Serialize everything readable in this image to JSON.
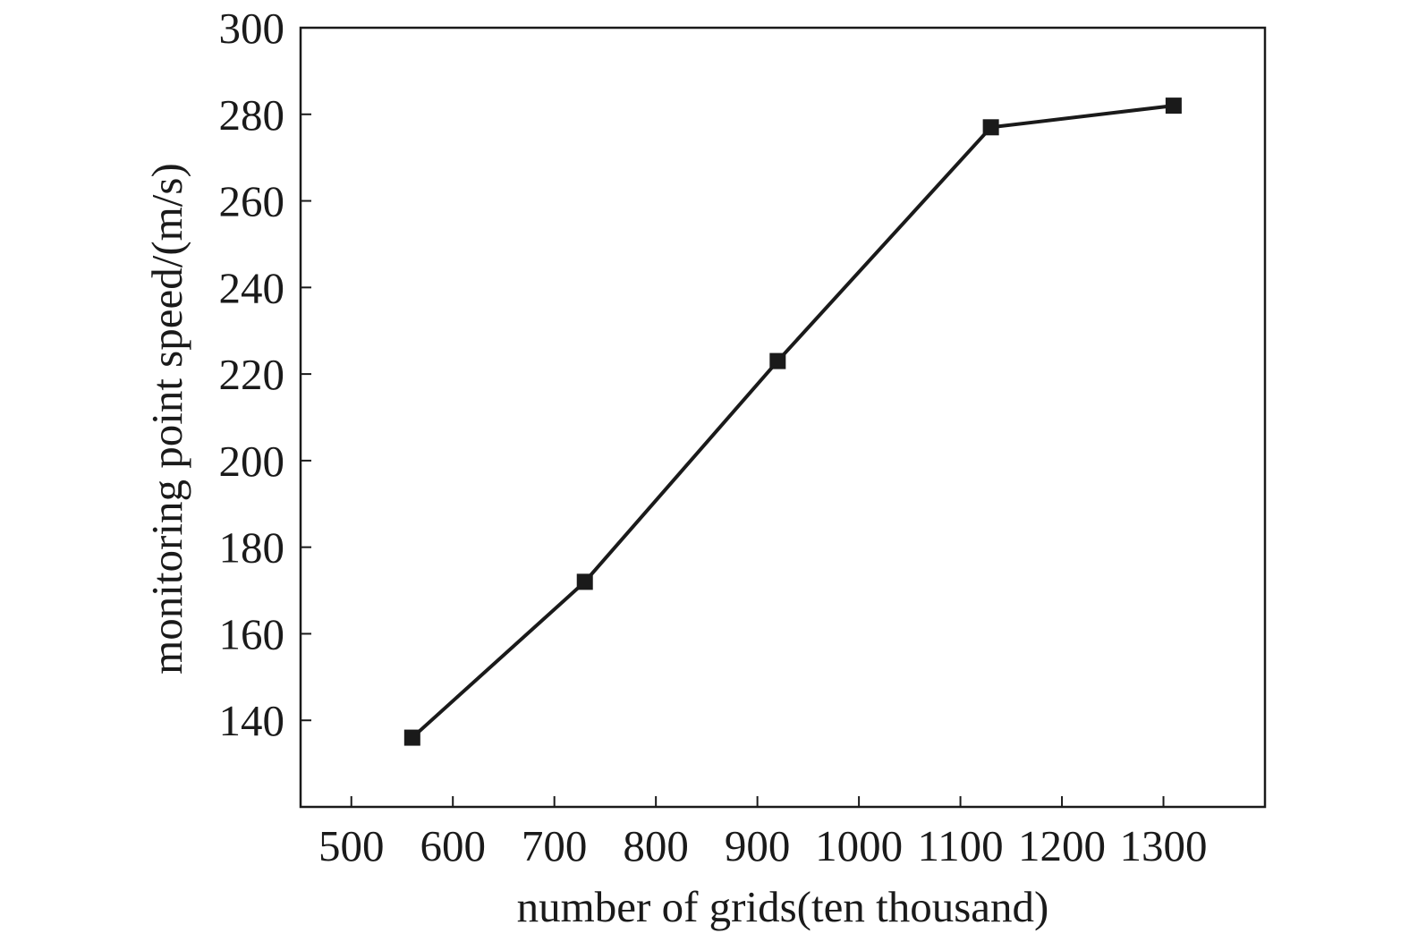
{
  "chart_data": {
    "type": "line",
    "title": "",
    "xlabel": "number of grids(ten thousand)",
    "ylabel": "monitoring point speed/(m/s)",
    "xlim": [
      450,
      1400
    ],
    "ylim": [
      120,
      300
    ],
    "x_ticks": [
      500,
      600,
      700,
      800,
      900,
      1000,
      1100,
      1200,
      1300
    ],
    "y_ticks": [
      140,
      160,
      180,
      200,
      220,
      240,
      260,
      280,
      300
    ],
    "grid": false,
    "legend": "none",
    "series": [
      {
        "x": [
          560,
          730,
          920,
          1130,
          1310
        ],
        "y": [
          136,
          172,
          223,
          277,
          282
        ],
        "marker": "square",
        "color": "#1a1a1a"
      }
    ]
  }
}
